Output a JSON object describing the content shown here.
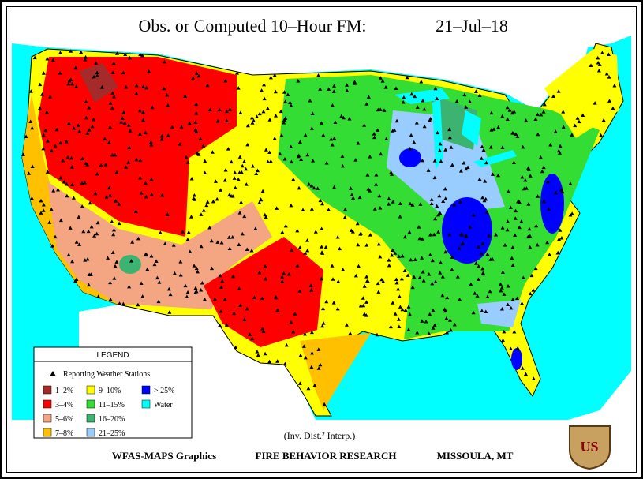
{
  "title": "Obs. or Computed 10–Hour FM:",
  "date": "21–Jul–18",
  "legend": {
    "title": "LEGEND",
    "stations": "Reporting Weather Stations",
    "items": [
      {
        "label": "1–2%",
        "color": "#a52a2a"
      },
      {
        "label": "3–4%",
        "color": "#ff0000"
      },
      {
        "label": "5–6%",
        "color": "#f4a582"
      },
      {
        "label": "7–8%",
        "color": "#ffc000"
      },
      {
        "label": "9–10%",
        "color": "#ffff00"
      },
      {
        "label": "11–15%",
        "color": "#33dd33"
      },
      {
        "label": "16–20%",
        "color": "#3cb371"
      },
      {
        "label": "21–25%",
        "color": "#99ccff"
      },
      {
        "label": "> 25%",
        "color": "#0000ff"
      },
      {
        "label": "Water",
        "color": "#00ffff"
      }
    ]
  },
  "interpolation": "(Inv. Dist.² Interp.)",
  "footer": {
    "left": "WFAS-MAPS Graphics",
    "center": "FIRE BEHAVIOR RESEARCH",
    "right": "MISSOULA, MT"
  },
  "badge": "US"
}
